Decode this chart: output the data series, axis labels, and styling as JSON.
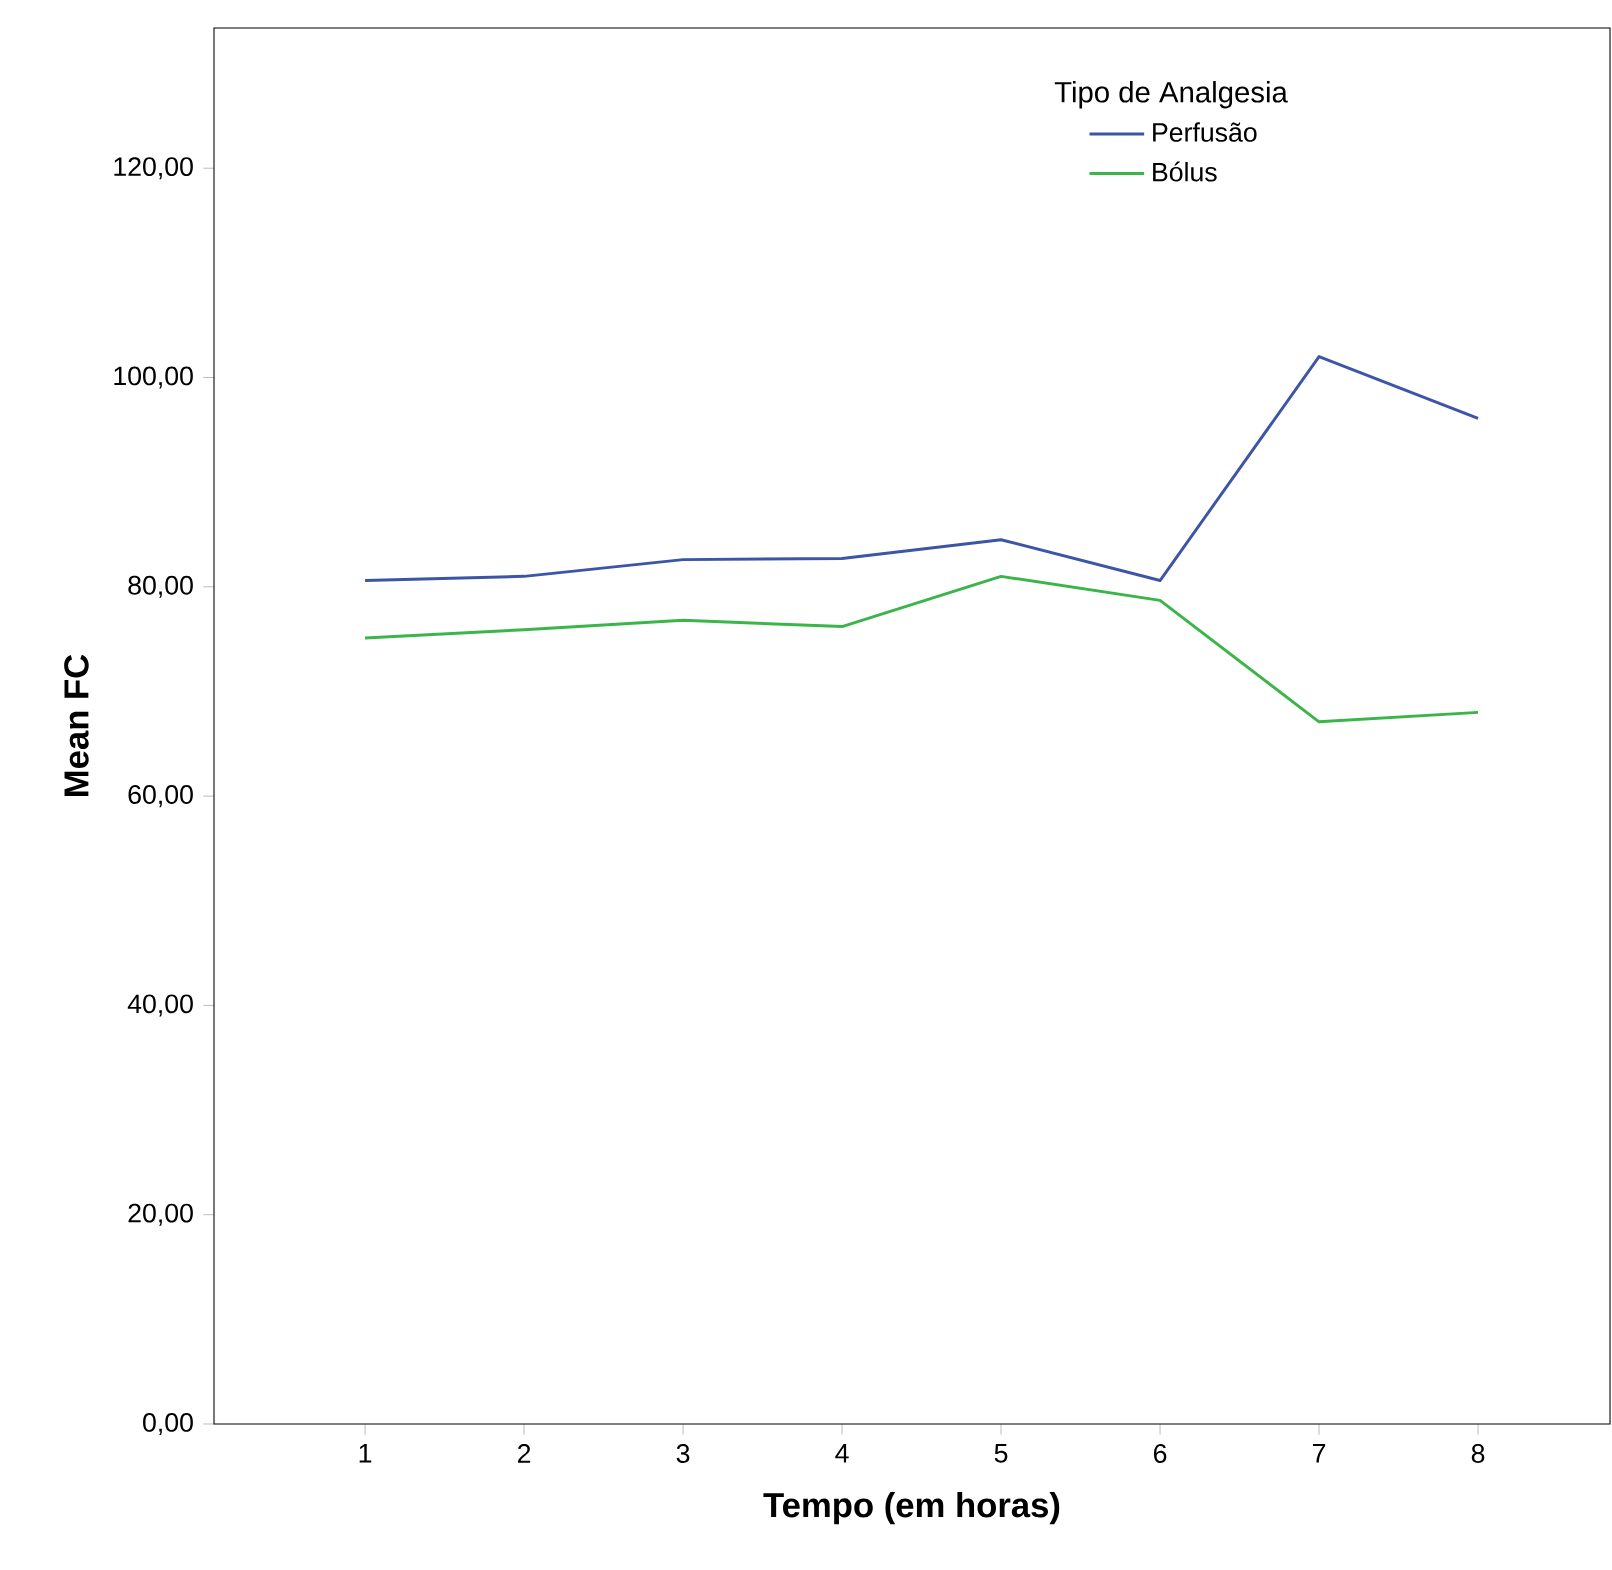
{
  "chart_data": {
    "type": "line",
    "xlabel": "Tempo (em horas)",
    "ylabel": "Mean FC",
    "legend_title": "Tipo de Analgesia",
    "legend": "top right",
    "grid": false,
    "marker": "none",
    "line_style": "solid",
    "x": [
      1,
      2,
      3,
      4,
      5,
      6,
      7,
      8
    ],
    "xlim": [
      0.05,
      8.83
    ],
    "xticks": [
      1,
      2,
      3,
      4,
      5,
      6,
      7,
      8
    ],
    "ylim": [
      0,
      133.4
    ],
    "yticks": [
      {
        "value": 0,
        "label": "0,00"
      },
      {
        "value": 20,
        "label": "20,00"
      },
      {
        "value": 40,
        "label": "40,00"
      },
      {
        "value": 60,
        "label": "60,00"
      },
      {
        "value": 80,
        "label": "80,00"
      },
      {
        "value": 100,
        "label": "100,00"
      },
      {
        "value": 120,
        "label": "120,00"
      }
    ],
    "series": [
      {
        "name": "Perfusão",
        "color": "#3d55a6",
        "values": [
          80.6,
          81.0,
          82.6,
          82.7,
          84.5,
          80.6,
          102.0,
          96.1
        ]
      },
      {
        "name": "Bólus",
        "color": "#3bb54a",
        "values": [
          75.1,
          75.9,
          76.8,
          76.2,
          81.0,
          78.7,
          67.1,
          68.0
        ]
      }
    ]
  }
}
